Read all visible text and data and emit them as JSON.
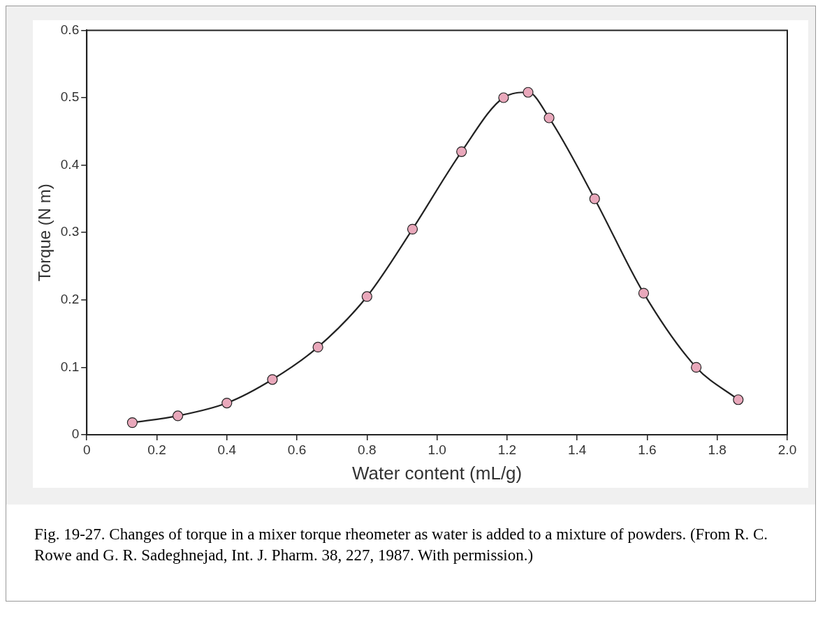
{
  "chart_data": {
    "type": "line",
    "xlabel": "Water content (mL/g)",
    "ylabel": "Torque (N m)",
    "x": [
      0.13,
      0.26,
      0.4,
      0.53,
      0.66,
      0.8,
      0.93,
      1.07,
      1.19,
      1.26,
      1.32,
      1.45,
      1.59,
      1.74,
      1.86
    ],
    "series": [
      {
        "color": "#222222",
        "values": [
          0.018,
          0.028,
          0.047,
          0.082,
          0.13,
          0.205,
          0.305,
          0.42,
          0.5,
          0.508,
          0.47,
          0.35,
          0.21,
          0.1,
          0.052
        ]
      }
    ],
    "marker": "circle",
    "xlim": [
      0,
      2.0
    ],
    "ylim": [
      0,
      0.6
    ],
    "xticks": [
      0,
      0.2,
      0.4,
      0.6,
      0.8,
      {
        "value": 1,
        "label": "1.0"
      },
      1.2,
      1.4,
      1.6,
      1.8,
      {
        "value": 2,
        "label": "2.0"
      }
    ],
    "yticks": [
      0,
      0.1,
      0.2,
      0.3,
      0.4,
      0.5,
      0.6
    ],
    "grid": false,
    "legend": false,
    "annotations": [
      "Fig. 19-27. Changes of torque in a mixer torque rheometer as water is added to a mixture of powders. (From R. C. Rowe and G. R. Sadeghnejad, Int. J. Pharm. 38, 227, 1987. With permission.)"
    ]
  }
}
